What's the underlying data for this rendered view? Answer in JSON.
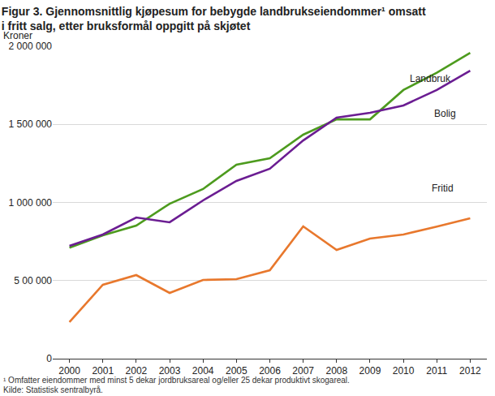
{
  "chart_data": {
    "type": "line",
    "title": [
      "Figur 3. Gjennomsnittlig kjøpesum for bebygde landbrukseiendommer¹ omsatt",
      "i fritt salg, etter bruksformål oppgitt på skjøtet"
    ],
    "y_label": "Kroner",
    "notes": [
      "¹ Omfatter eiendommer med minst 5 dekar jordbruksareal og/eller 25 dekar produktivt skogareal.",
      "Kilde: Statistisk sentralbyrå."
    ],
    "x": [
      2000,
      2001,
      2002,
      2003,
      2004,
      2005,
      2006,
      2007,
      2008,
      2009,
      2010,
      2011,
      2012
    ],
    "series": [
      {
        "name": "Landbruk",
        "color": "#4d9b1e",
        "values": [
          710000,
          790000,
          852000,
          992000,
          1086000,
          1242000,
          1283000,
          1434000,
          1532000,
          1532000,
          1720000,
          1830000,
          1958000
        ]
      },
      {
        "name": "Bolig",
        "color": "#6b1d92",
        "values": [
          722000,
          795000,
          904000,
          873000,
          1013000,
          1138000,
          1216000,
          1397000,
          1543000,
          1574000,
          1621000,
          1720000,
          1844000
        ]
      },
      {
        "name": "Fritid",
        "color": "#e8782d",
        "values": [
          234000,
          473000,
          535000,
          421000,
          504000,
          509000,
          566000,
          847000,
          696000,
          769000,
          795000,
          845000,
          899000
        ]
      }
    ],
    "xlim": [
      1999.5,
      2012.5
    ],
    "xticks": [
      2000,
      2001,
      2002,
      2003,
      2004,
      2005,
      2006,
      2007,
      2008,
      2009,
      2010,
      2011,
      2012
    ],
    "ylim": [
      0,
      2000000
    ],
    "yticks": [
      0,
      {
        "value": 500000,
        "label": "5 00 000"
      },
      {
        "value": 1000000,
        "label": "1 000 000"
      },
      {
        "value": 1500000,
        "label": "1 500 000"
      },
      {
        "value": 2000000,
        "label": "2 000 000"
      }
    ],
    "grid": true
  }
}
